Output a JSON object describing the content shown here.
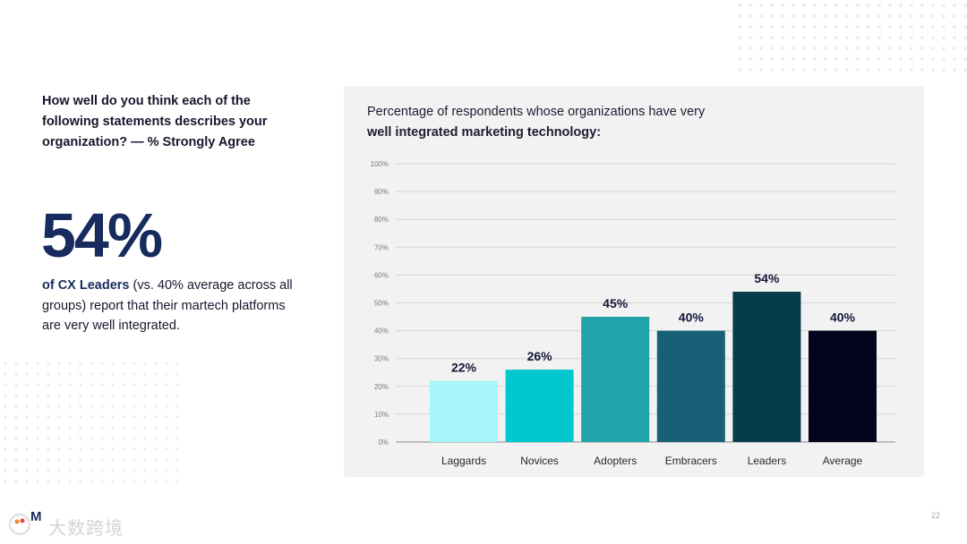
{
  "question": "How well do you think each of the following statements describes your organization? — % Strongly Agree",
  "stat": {
    "value": "54%",
    "highlight": "of CX Leaders",
    "rest": " (vs. 40% average across all groups) report that their martech platforms are very well integrated."
  },
  "chart_title": {
    "line1": "Percentage of respondents whose organizations have very",
    "line2": "well integrated marketing technology:"
  },
  "chart_data": {
    "type": "bar",
    "title": "Percentage of respondents whose organizations have very well integrated marketing technology:",
    "categories": [
      "Laggards",
      "Novices",
      "Adopters",
      "Embracers",
      "Leaders",
      "Average"
    ],
    "values": [
      22,
      26,
      45,
      40,
      54,
      40
    ],
    "value_labels": [
      "22%",
      "26%",
      "45%",
      "40%",
      "54%",
      "40%"
    ],
    "colors": [
      "#a6f5f8",
      "#00c8ce",
      "#22a3a9",
      "#176075",
      "#073c4a",
      "#03051c"
    ],
    "ylim": [
      0,
      100
    ],
    "yticks": [
      0,
      10,
      20,
      30,
      40,
      50,
      60,
      70,
      80,
      90,
      100
    ],
    "ytick_labels": [
      "0%",
      "10%",
      "20%",
      "30%",
      "40%",
      "50%",
      "60%",
      "70%",
      "80%",
      "90%",
      "100%"
    ],
    "grid": true,
    "xlabel": "",
    "ylabel": ""
  },
  "footer": {
    "logo_letter": "M",
    "watermark": "大数跨境",
    "page_number": "22"
  }
}
